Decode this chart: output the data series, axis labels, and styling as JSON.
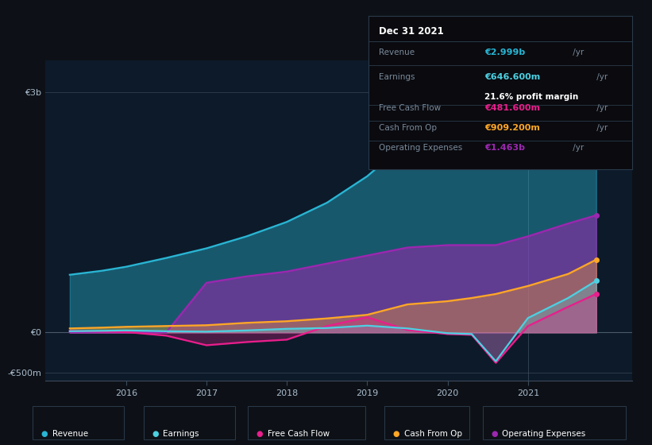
{
  "background_color": "#0d1117",
  "chart_bg": "#0d1a2a",
  "years": [
    2015.3,
    2015.7,
    2016.0,
    2016.5,
    2017.0,
    2017.5,
    2018.0,
    2018.5,
    2019.0,
    2019.5,
    2020.0,
    2020.3,
    2020.6,
    2021.0,
    2021.5,
    2021.85
  ],
  "revenue": [
    720,
    770,
    820,
    930,
    1050,
    1200,
    1380,
    1620,
    1950,
    2380,
    2480,
    2480,
    2380,
    2430,
    2780,
    2999
  ],
  "op_expenses": [
    0,
    0,
    0,
    0,
    620,
    700,
    760,
    860,
    960,
    1060,
    1090,
    1090,
    1090,
    1200,
    1360,
    1463
  ],
  "cash_from_op": [
    50,
    60,
    70,
    80,
    90,
    120,
    140,
    175,
    220,
    350,
    390,
    430,
    480,
    580,
    730,
    909
  ],
  "free_cash_flow": [
    20,
    10,
    5,
    -40,
    -160,
    -120,
    -90,
    80,
    190,
    30,
    -20,
    -30,
    -380,
    80,
    320,
    481
  ],
  "earnings": [
    15,
    20,
    25,
    15,
    10,
    25,
    45,
    55,
    85,
    50,
    -10,
    -20,
    -360,
    180,
    430,
    646
  ],
  "revenue_color": "#29b6d4",
  "earnings_color": "#4dd0e1",
  "free_cash_flow_color": "#e91e8c",
  "cash_from_op_color": "#ffa726",
  "op_expenses_color": "#9c27b0",
  "ylim_min": -600,
  "ylim_max": 3400,
  "xlim_min": 2015.0,
  "xlim_max": 2022.3,
  "xlabel_years": [
    2016,
    2017,
    2018,
    2019,
    2020,
    2021
  ],
  "yticks_labels": [
    "€3b",
    "€0",
    "-€500m"
  ],
  "yticks_values": [
    3000,
    0,
    -500
  ],
  "highlight_x": 2021.0,
  "info_box": {
    "title": "Dec 31 2021",
    "rows": [
      {
        "label": "Revenue",
        "value": "€2.999b",
        "suffix": " /yr",
        "color": "#29b6d4",
        "extra": null
      },
      {
        "label": "Earnings",
        "value": "€646.600m",
        "suffix": " /yr",
        "color": "#4dd0e1",
        "extra": "21.6% profit margin"
      },
      {
        "label": "Free Cash Flow",
        "value": "€481.600m",
        "suffix": " /yr",
        "color": "#e91e8c",
        "extra": null
      },
      {
        "label": "Cash From Op",
        "value": "€909.200m",
        "suffix": " /yr",
        "color": "#ffa726",
        "extra": null
      },
      {
        "label": "Operating Expenses",
        "value": "€1.463b",
        "suffix": " /yr",
        "color": "#9c27b0",
        "extra": null
      }
    ]
  },
  "legend_items": [
    {
      "label": "Revenue",
      "color": "#29b6d4"
    },
    {
      "label": "Earnings",
      "color": "#4dd0e1"
    },
    {
      "label": "Free Cash Flow",
      "color": "#e91e8c"
    },
    {
      "label": "Cash From Op",
      "color": "#ffa726"
    },
    {
      "label": "Operating Expenses",
      "color": "#9c27b0"
    }
  ]
}
